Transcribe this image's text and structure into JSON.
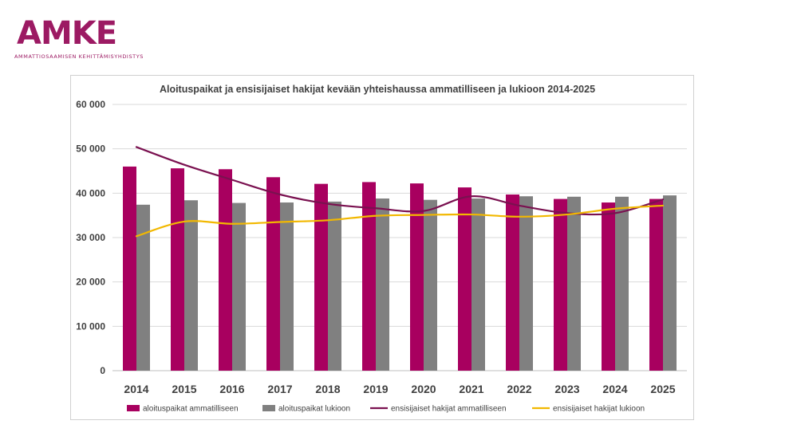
{
  "logo": {
    "name": "AMKE",
    "subtitle": "AMMATTIOSAAMISEN KEHITTÄMISYHDISTYS",
    "color": "#9c1a63"
  },
  "chart_data": {
    "type": "bar",
    "title": "Aloituspaikat ja ensisijaiset hakijat kevään yhteishaussa ammatilliseen ja lukioon 2014-2025",
    "categories": [
      "2014",
      "2015",
      "2016",
      "2017",
      "2018",
      "2019",
      "2020",
      "2021",
      "2022",
      "2023",
      "2024",
      "2025"
    ],
    "ylim": [
      0,
      60000
    ],
    "yticks": [
      0,
      10000,
      20000,
      30000,
      40000,
      50000,
      60000
    ],
    "ytick_labels": [
      "0",
      "10 000",
      "20 000",
      "30 000",
      "40 000",
      "50 000",
      "60 000"
    ],
    "grid": true,
    "legend_position": "bottom",
    "series": [
      {
        "name": "aloituspaikat ammatilliseen",
        "kind": "bar",
        "color": "#a8005f",
        "values": [
          46000,
          45600,
          45400,
          43600,
          42100,
          42500,
          42200,
          41300,
          39700,
          38700,
          37900,
          38700
        ]
      },
      {
        "name": "aloituspaikat lukioon",
        "kind": "bar",
        "color": "#808080",
        "values": [
          37400,
          38400,
          37800,
          37900,
          38100,
          38800,
          38500,
          38800,
          39300,
          39200,
          39200,
          39500
        ]
      },
      {
        "name": "ensisijaiset hakijat ammatilliseen",
        "kind": "line",
        "color": "#7a1150",
        "values": [
          50400,
          46400,
          43000,
          39700,
          37600,
          36600,
          36000,
          39300,
          37200,
          35500,
          35500,
          38600
        ]
      },
      {
        "name": "ensisijaiset hakijat lukioon",
        "kind": "line",
        "color": "#f2b800",
        "values": [
          30300,
          33600,
          33100,
          33500,
          33900,
          34900,
          35100,
          35200,
          34700,
          35200,
          36500,
          37200
        ]
      }
    ]
  }
}
